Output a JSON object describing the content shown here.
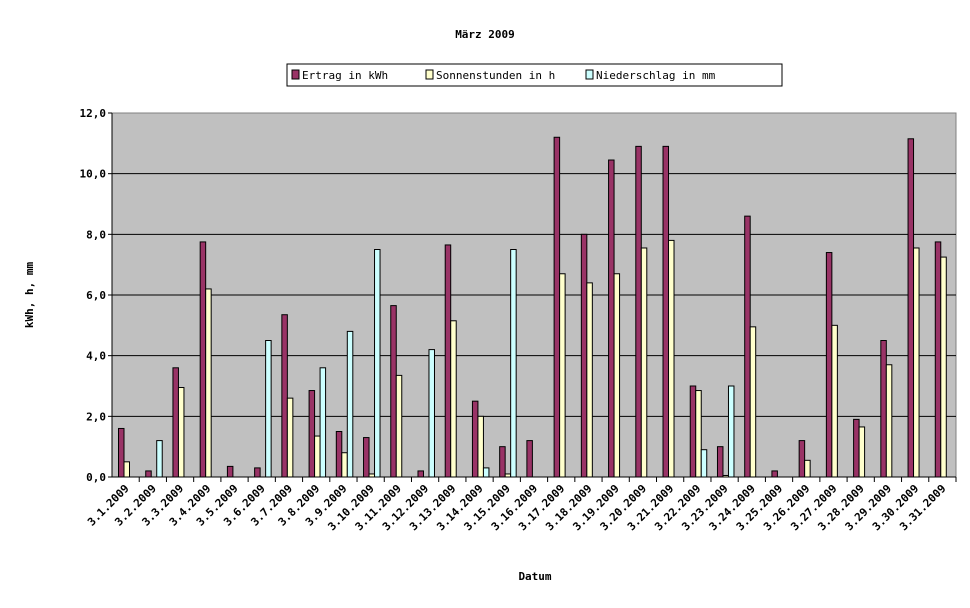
{
  "chart_data": {
    "type": "bar",
    "title": "März 2009",
    "xlabel": "Datum",
    "ylabel": "kWh, h, mm",
    "ylim": [
      0,
      12
    ],
    "yticks": [
      "0,0",
      "2,0",
      "4,0",
      "6,0",
      "8,0",
      "10,0",
      "12,0"
    ],
    "grid": true,
    "legend_position": "top",
    "categories": [
      "3.1.2009",
      "3.2.2009",
      "3.3.2009",
      "3.4.2009",
      "3.5.2009",
      "3.6.2009",
      "3.7.2009",
      "3.8.2009",
      "3.9.2009",
      "3.10.2009",
      "3.11.2009",
      "3.12.2009",
      "3.13.2009",
      "3.14.2009",
      "3.15.2009",
      "3.16.2009",
      "3.17.2009",
      "3.18.2009",
      "3.19.2009",
      "3.20.2009",
      "3.21.2009",
      "3.22.2009",
      "3.23.2009",
      "3.24.2009",
      "3.25.2009",
      "3.26.2009",
      "3.27.2009",
      "3.28.2009",
      "3.29.2009",
      "3.30.2009",
      "3.31.2009"
    ],
    "series": [
      {
        "name": "Ertrag in kWh",
        "color": "#993366",
        "values": [
          1.6,
          0.2,
          3.6,
          7.75,
          0.35,
          0.3,
          5.35,
          2.85,
          1.5,
          1.3,
          5.65,
          0.2,
          7.65,
          2.5,
          1.0,
          1.2,
          11.2,
          8.0,
          10.45,
          10.9,
          10.9,
          3.0,
          1.0,
          8.6,
          0.2,
          1.2,
          7.4,
          1.9,
          4.5,
          11.15,
          7.75
        ]
      },
      {
        "name": "Sonnenstunden in h",
        "color": "#ffffcc",
        "values": [
          0.5,
          0,
          2.95,
          6.2,
          0,
          0,
          2.6,
          1.35,
          0.8,
          0.1,
          3.35,
          0,
          5.15,
          2.0,
          0.1,
          0,
          6.7,
          6.4,
          6.7,
          7.55,
          7.8,
          2.85,
          0.05,
          4.95,
          0,
          0.55,
          5.0,
          1.65,
          3.7,
          7.55,
          7.25
        ]
      },
      {
        "name": "Niederschlag in mm",
        "color": "#ccffff",
        "values": [
          0,
          1.2,
          0,
          0,
          0,
          4.5,
          0,
          3.6,
          4.8,
          7.5,
          0,
          4.2,
          0,
          0.3,
          7.5,
          0,
          0,
          0,
          0,
          0,
          0,
          0.9,
          3.0,
          0,
          0,
          0,
          0,
          0,
          0,
          0,
          0
        ]
      }
    ],
    "plot_background": "#c0c0c0"
  }
}
